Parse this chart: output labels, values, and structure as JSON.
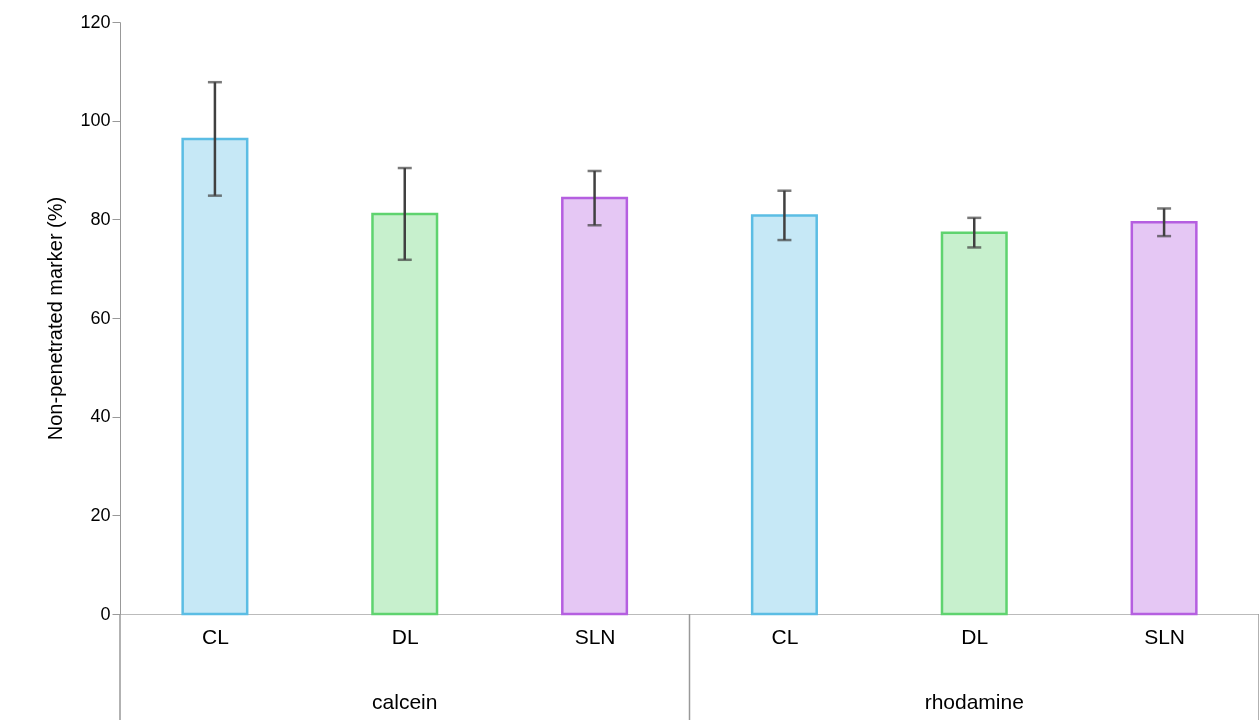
{
  "chart_data": {
    "type": "bar",
    "ylabel": "Non-penetrated marker (%)",
    "categories": [
      "CL",
      "DL",
      "SLN",
      "CL",
      "DL",
      "SLN"
    ],
    "values": [
      96.3,
      81.1,
      84.3,
      80.8,
      77.3,
      79.4
    ],
    "errors": [
      11.5,
      9.3,
      5.5,
      5,
      3,
      2.8
    ],
    "colors": [
      "#5bbde4",
      "#5fd36f",
      "#b55fe0",
      "#5bbde4",
      "#5fd36f",
      "#b55fe0"
    ],
    "annotations": [
      "calcein",
      "rhodamine"
    ],
    "ylim": [
      0,
      120
    ],
    "yticks": [
      0,
      20,
      40,
      60,
      80,
      100,
      120
    ],
    "grid": false
  }
}
